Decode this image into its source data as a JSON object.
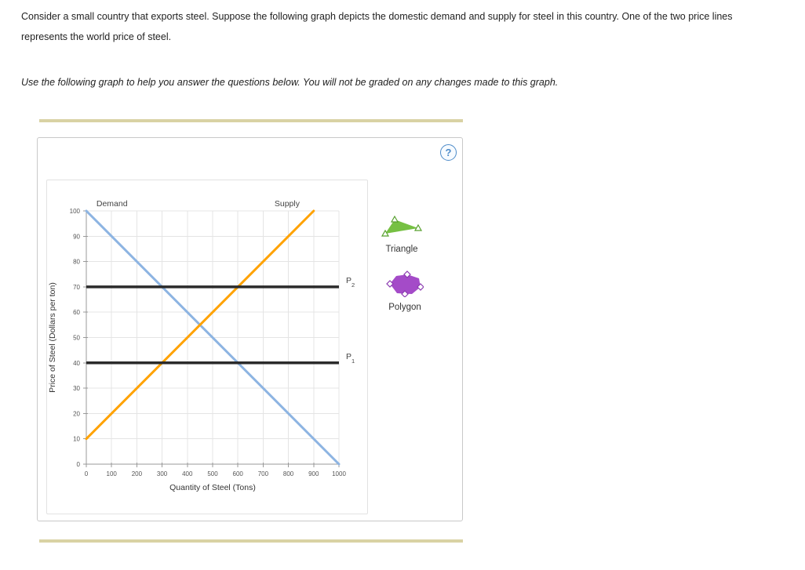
{
  "question": {
    "paragraph": "Consider a small country that exports steel. Suppose the following graph depicts the domestic demand and supply for steel in this country. One of the two price lines represents the world price of steel.",
    "instruction": "Use the following graph to help you answer the questions below. You will not be graded on any changes made to this graph."
  },
  "panel": {
    "help_glyph": "?"
  },
  "tools": [
    {
      "label": "Triangle",
      "fill": "#76c043",
      "handle_stroke": "#57a02e"
    },
    {
      "label": "Polygon",
      "fill": "#a44bc8",
      "handle_stroke": "#8b3ab0"
    }
  ],
  "colors": {
    "divider": "#d9d2a4",
    "help_accent": "#4d8bc9",
    "grid": "#e4e4e4",
    "axis": "#999999"
  },
  "chart_data": {
    "type": "line",
    "title": "",
    "xlabel": "Quantity of Steel (Tons)",
    "ylabel": "Price of Steel (Dollars per ton)",
    "xlim": [
      0,
      1000
    ],
    "ylim": [
      0,
      100
    ],
    "x_ticks": [
      0,
      100,
      200,
      300,
      400,
      500,
      600,
      700,
      800,
      900,
      1000
    ],
    "y_ticks": [
      0,
      10,
      20,
      30,
      40,
      50,
      60,
      70,
      80,
      90,
      100
    ],
    "grid": true,
    "series": [
      {
        "name": "Demand",
        "id": "demand-line",
        "color": "#8db4e2",
        "width": 3,
        "points": [
          [
            0,
            100
          ],
          [
            1000,
            0
          ]
        ],
        "label_x": 40
      },
      {
        "name": "Supply",
        "id": "supply-line",
        "color": "#ffa200",
        "width": 3,
        "points": [
          [
            0,
            10
          ],
          [
            900,
            100
          ]
        ],
        "label_x": 745
      },
      {
        "name": "P2",
        "id": "price-line-p2",
        "color": "#2b2b2b",
        "width": 3.5,
        "points": [
          [
            0,
            70
          ],
          [
            1000,
            70
          ]
        ],
        "side_label": "P",
        "side_label_sub": "2"
      },
      {
        "name": "P1",
        "id": "price-line-p1",
        "color": "#2b2b2b",
        "width": 3.5,
        "points": [
          [
            0,
            40
          ],
          [
            1000,
            40
          ]
        ],
        "side_label": "P",
        "side_label_sub": "1"
      }
    ]
  }
}
